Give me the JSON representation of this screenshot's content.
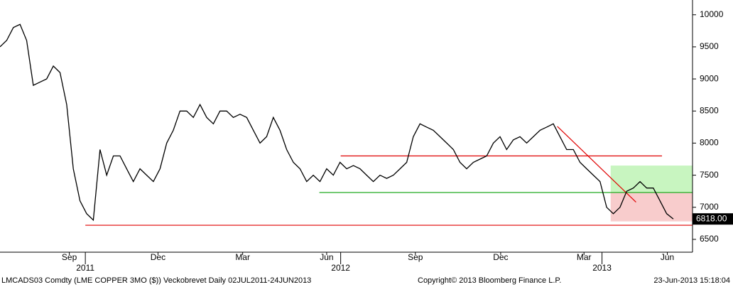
{
  "chart_data": {
    "type": "line",
    "values": [
      9500,
      9600,
      9800,
      9850,
      9600,
      8900,
      8950,
      9000,
      9200,
      9100,
      8600,
      7600,
      7100,
      6900,
      6800,
      7900,
      7500,
      7800,
      7800,
      7600,
      7400,
      7600,
      7500,
      7400,
      7600,
      8000,
      8200,
      8500,
      8500,
      8400,
      8600,
      8400,
      8300,
      8500,
      8500,
      8400,
      8450,
      8400,
      8200,
      8000,
      8100,
      8400,
      8200,
      7900,
      7700,
      7600,
      7400,
      7500,
      7400,
      7600,
      7500,
      7700,
      7600,
      7650,
      7600,
      7500,
      7400,
      7500,
      7450,
      7500,
      7600,
      7700,
      8100,
      8300,
      8250,
      8200,
      8100,
      8000,
      7900,
      7700,
      7600,
      7700,
      7750,
      7800,
      8000,
      8100,
      7900,
      8050,
      8100,
      8000,
      8100,
      8200,
      8250,
      8300,
      8100,
      7900,
      7900,
      7700,
      7600,
      7500,
      7400,
      7000,
      6900,
      7000,
      7250,
      7300,
      7400,
      7300,
      7300,
      7100,
      6900,
      6818
    ],
    "color": "#000000",
    "value_labels": [
      "6818.00"
    ],
    "ylim": [
      6300,
      10230
    ],
    "yticks": [
      6500,
      7000,
      7500,
      8000,
      8500,
      9000,
      9500,
      10000
    ],
    "xlim": [
      0,
      101
    ],
    "xticks": [
      {
        "value": 10.4,
        "label": "Sep"
      },
      {
        "value": 23.7,
        "label": "Dec"
      },
      {
        "value": 36.4,
        "label": "Mar"
      },
      {
        "value": 49,
        "label": "Jun"
      },
      {
        "value": 62.3,
        "label": "Sep"
      },
      {
        "value": 75.1,
        "label": "Dec"
      },
      {
        "value": 87.6,
        "label": "Mar"
      },
      {
        "value": 100.1,
        "label": "Jun"
      }
    ],
    "year_ticks": [
      {
        "value": 12.8,
        "label": "2011"
      },
      {
        "value": 51.1,
        "label": "2012"
      },
      {
        "value": 90.3,
        "label": "2013"
      }
    ],
    "annotations": [
      {
        "shape": "box",
        "color": "#c8f5c0",
        "x": [
          91.6,
          104
        ],
        "y": [
          7230,
          7650
        ]
      },
      {
        "shape": "box",
        "color": "#f8cccc",
        "x": [
          91.6,
          104
        ],
        "y": [
          6780,
          7230
        ]
      },
      {
        "shape": "line",
        "color": "#e00000",
        "x": [
          51.1,
          99.3
        ],
        "y": [
          7800,
          7800
        ]
      },
      {
        "shape": "line",
        "color": "#22aa22",
        "x": [
          47.9,
          104
        ],
        "y": [
          7230,
          7230
        ]
      },
      {
        "shape": "line",
        "color": "#e00000",
        "x": [
          12.8,
          104
        ],
        "y": [
          6720,
          6720
        ]
      },
      {
        "shape": "line",
        "color": "#e00000",
        "x": [
          83.6,
          95.4
        ],
        "y": [
          8260,
          7080
        ]
      }
    ],
    "footer": [
      "LMCADS03 Comdty (LME COPPER    3MO ($)) Veckobrevet  Daily 02JUL2011-24JUN2013",
      "Copyright© 2013 Bloomberg Finance L.P.",
      "23-Jun-2013 15:18:04"
    ]
  }
}
